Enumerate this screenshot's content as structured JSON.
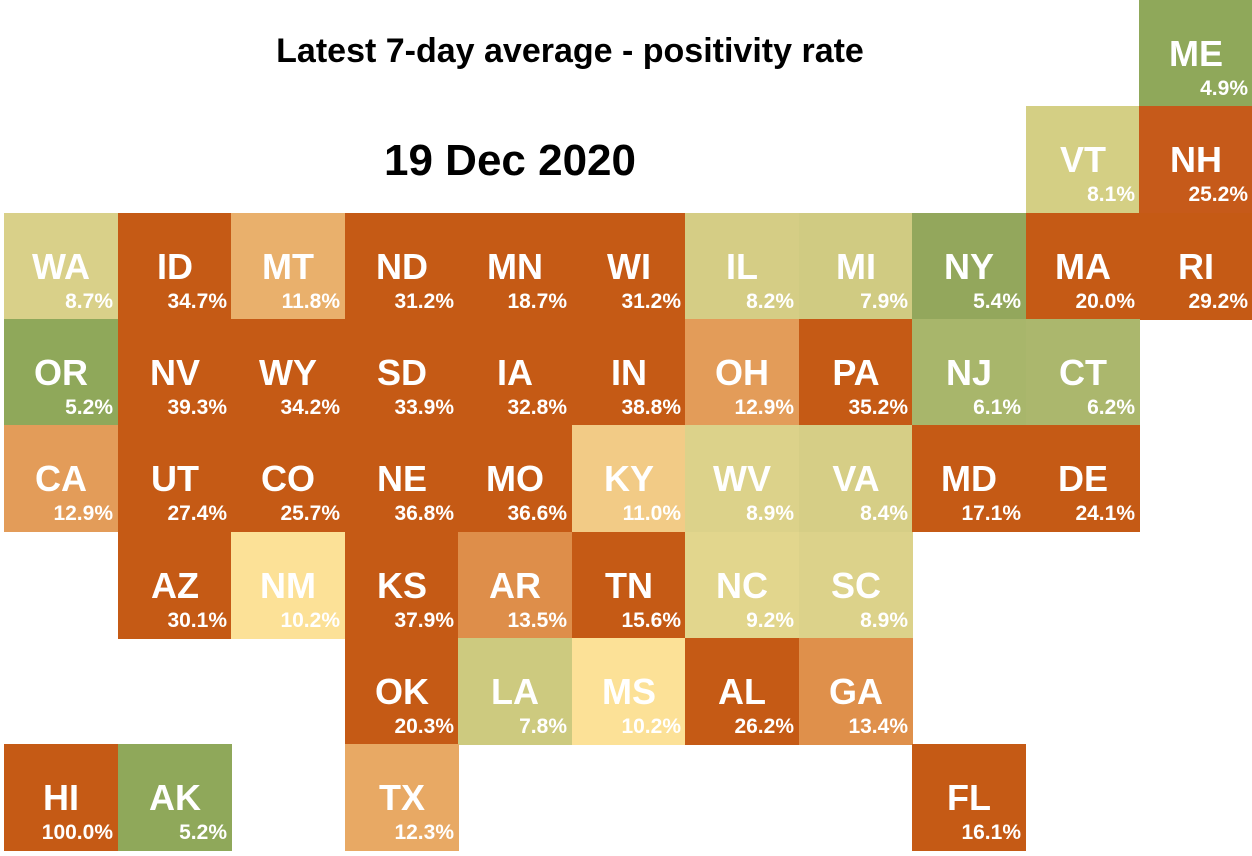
{
  "title": "Latest 7-day average - positivity rate",
  "date": "19 Dec 2020",
  "states": [
    {
      "abbr": "ME",
      "rate": "4.9%",
      "row": 0,
      "col": 10,
      "color": "#8fa85a"
    },
    {
      "abbr": "VT",
      "rate": "8.1%",
      "row": 1,
      "col": 9,
      "color": "#d4cf84"
    },
    {
      "abbr": "NH",
      "rate": "25.2%",
      "row": 1,
      "col": 10,
      "color": "#c65a1a"
    },
    {
      "abbr": "WA",
      "rate": "8.7%",
      "row": 2,
      "col": 0,
      "color": "#d9d089"
    },
    {
      "abbr": "ID",
      "rate": "34.7%",
      "row": 2,
      "col": 1,
      "color": "#c55a15"
    },
    {
      "abbr": "MT",
      "rate": "11.8%",
      "row": 2,
      "col": 2,
      "color": "#e9b06c"
    },
    {
      "abbr": "ND",
      "rate": "31.2%",
      "row": 2,
      "col": 3,
      "color": "#c55a15"
    },
    {
      "abbr": "MN",
      "rate": "18.7%",
      "row": 2,
      "col": 4,
      "color": "#c55a15"
    },
    {
      "abbr": "WI",
      "rate": "31.2%",
      "row": 2,
      "col": 5,
      "color": "#c55a15"
    },
    {
      "abbr": "IL",
      "rate": "8.2%",
      "row": 2,
      "col": 6,
      "color": "#d5cd85"
    },
    {
      "abbr": "MI",
      "rate": "7.9%",
      "row": 2,
      "col": 7,
      "color": "#d0cb82"
    },
    {
      "abbr": "NY",
      "rate": "5.4%",
      "row": 2,
      "col": 8,
      "color": "#93a75c"
    },
    {
      "abbr": "MA",
      "rate": "20.0%",
      "row": 2,
      "col": 9,
      "color": "#c55a15"
    },
    {
      "abbr": "RI",
      "rate": "29.2%",
      "row": 2,
      "col": 10,
      "color": "#c55a15"
    },
    {
      "abbr": "OR",
      "rate": "5.2%",
      "row": 3,
      "col": 0,
      "color": "#8fa85a"
    },
    {
      "abbr": "NV",
      "rate": "39.3%",
      "row": 3,
      "col": 1,
      "color": "#c55a15"
    },
    {
      "abbr": "WY",
      "rate": "34.2%",
      "row": 3,
      "col": 2,
      "color": "#c55a15"
    },
    {
      "abbr": "SD",
      "rate": "33.9%",
      "row": 3,
      "col": 3,
      "color": "#c55a15"
    },
    {
      "abbr": "IA",
      "rate": "32.8%",
      "row": 3,
      "col": 4,
      "color": "#c55a15"
    },
    {
      "abbr": "IN",
      "rate": "38.8%",
      "row": 3,
      "col": 5,
      "color": "#c55a15"
    },
    {
      "abbr": "OH",
      "rate": "12.9%",
      "row": 3,
      "col": 6,
      "color": "#e39c59"
    },
    {
      "abbr": "PA",
      "rate": "35.2%",
      "row": 3,
      "col": 7,
      "color": "#c55a15"
    },
    {
      "abbr": "NJ",
      "rate": "6.1%",
      "row": 3,
      "col": 8,
      "color": "#a8b66b"
    },
    {
      "abbr": "CT",
      "rate": "6.2%",
      "row": 3,
      "col": 9,
      "color": "#abb76d"
    },
    {
      "abbr": "CA",
      "rate": "12.9%",
      "row": 4,
      "col": 0,
      "color": "#e39c59"
    },
    {
      "abbr": "UT",
      "rate": "27.4%",
      "row": 4,
      "col": 1,
      "color": "#c55a15"
    },
    {
      "abbr": "CO",
      "rate": "25.7%",
      "row": 4,
      "col": 2,
      "color": "#c55a15"
    },
    {
      "abbr": "NE",
      "rate": "36.8%",
      "row": 4,
      "col": 3,
      "color": "#c55a15"
    },
    {
      "abbr": "MO",
      "rate": "36.6%",
      "row": 4,
      "col": 4,
      "color": "#c55a15"
    },
    {
      "abbr": "KY",
      "rate": "11.0%",
      "row": 4,
      "col": 5,
      "color": "#f2cb86"
    },
    {
      "abbr": "WV",
      "rate": "8.9%",
      "row": 4,
      "col": 6,
      "color": "#dcd28a"
    },
    {
      "abbr": "VA",
      "rate": "8.4%",
      "row": 4,
      "col": 7,
      "color": "#d6ce86"
    },
    {
      "abbr": "MD",
      "rate": "17.1%",
      "row": 4,
      "col": 8,
      "color": "#c55a15"
    },
    {
      "abbr": "DE",
      "rate": "24.1%",
      "row": 4,
      "col": 9,
      "color": "#c55a15"
    },
    {
      "abbr": "AZ",
      "rate": "30.1%",
      "row": 5,
      "col": 1,
      "color": "#c55a15"
    },
    {
      "abbr": "NM",
      "rate": "10.2%",
      "row": 5,
      "col": 2,
      "color": "#fce197"
    },
    {
      "abbr": "KS",
      "rate": "37.9%",
      "row": 5,
      "col": 3,
      "color": "#c55a15"
    },
    {
      "abbr": "AR",
      "rate": "13.5%",
      "row": 5,
      "col": 4,
      "color": "#de8e4a"
    },
    {
      "abbr": "TN",
      "rate": "15.6%",
      "row": 5,
      "col": 5,
      "color": "#c55a15"
    },
    {
      "abbr": "NC",
      "rate": "9.2%",
      "row": 5,
      "col": 6,
      "color": "#e2d68d"
    },
    {
      "abbr": "SC",
      "rate": "8.9%",
      "row": 5,
      "col": 7,
      "color": "#dcd28a"
    },
    {
      "abbr": "OK",
      "rate": "20.3%",
      "row": 6,
      "col": 3,
      "color": "#c55a15"
    },
    {
      "abbr": "LA",
      "rate": "7.8%",
      "row": 6,
      "col": 4,
      "color": "#cdca7f"
    },
    {
      "abbr": "MS",
      "rate": "10.2%",
      "row": 6,
      "col": 5,
      "color": "#fce197"
    },
    {
      "abbr": "AL",
      "rate": "26.2%",
      "row": 6,
      "col": 6,
      "color": "#c55a15"
    },
    {
      "abbr": "GA",
      "rate": "13.4%",
      "row": 6,
      "col": 7,
      "color": "#df904b"
    },
    {
      "abbr": "HI",
      "rate": "100.0%",
      "row": 7,
      "col": 0,
      "color": "#c55a15"
    },
    {
      "abbr": "AK",
      "rate": "5.2%",
      "row": 7,
      "col": 1,
      "color": "#8fa85a"
    },
    {
      "abbr": "TX",
      "rate": "12.3%",
      "row": 7,
      "col": 3,
      "color": "#e8a964"
    },
    {
      "abbr": "FL",
      "rate": "16.1%",
      "row": 7,
      "col": 8,
      "color": "#c55a15"
    }
  ]
}
